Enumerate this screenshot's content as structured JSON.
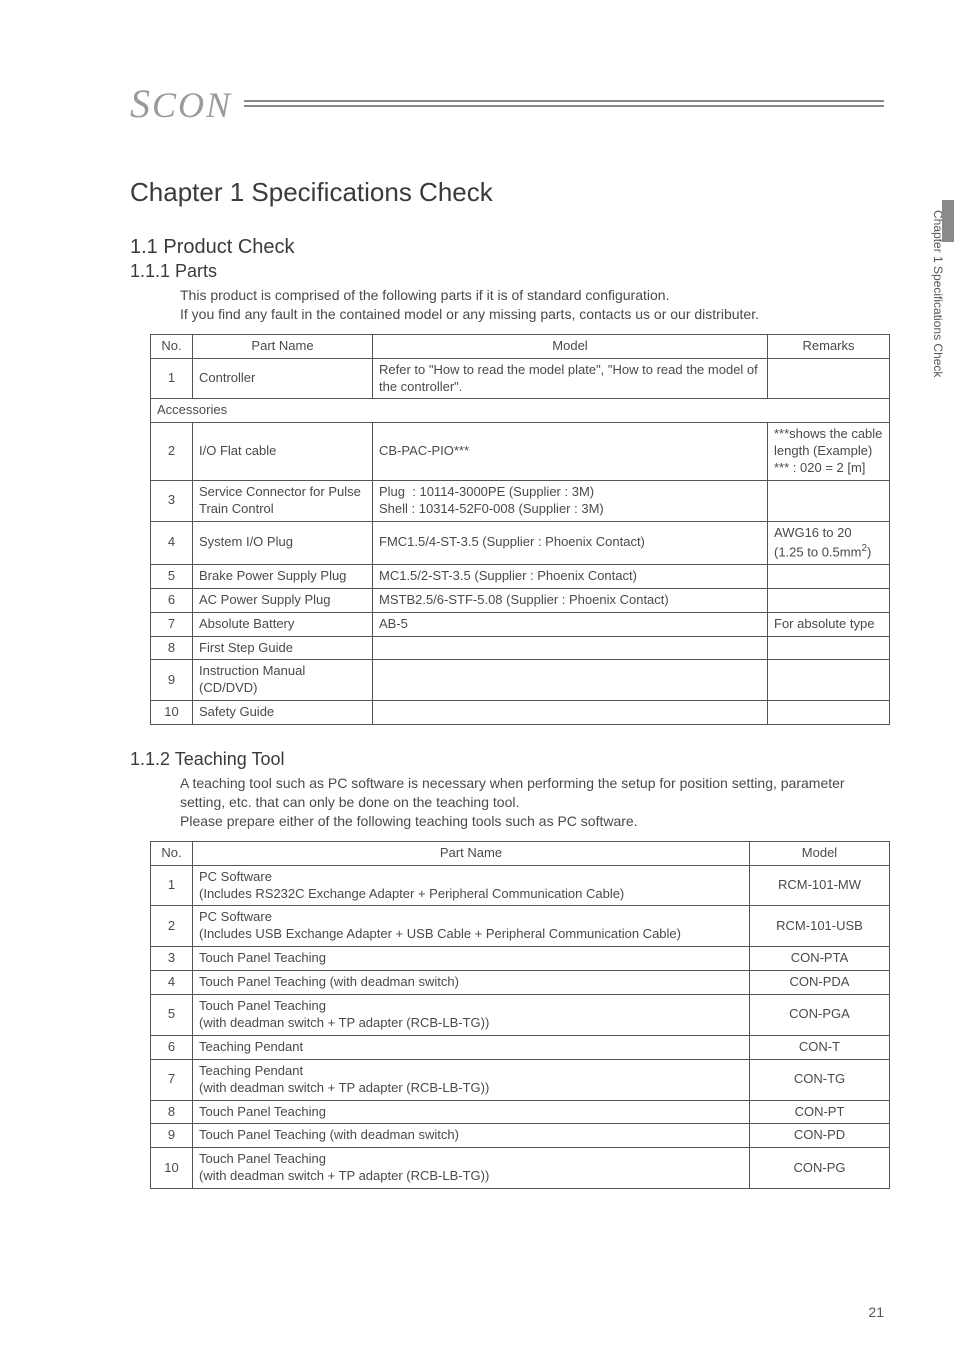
{
  "logo": "SCON",
  "sideTab": "Chapter 1 Specifications Check",
  "pageNumber": "21",
  "chapterTitle": "Chapter 1    Specifications Check",
  "section1": {
    "title": "1.1    Product Check",
    "sub1": {
      "title": "1.1.1    Parts",
      "intro1": "This product is comprised of the following parts if it is of standard configuration.",
      "intro2": "If you find any fault in the contained model or any missing parts, contacts us or our distributer.",
      "table": {
        "headers": {
          "no": "No.",
          "part": "Part Name",
          "model": "Model",
          "remarks": "Remarks"
        },
        "row1": {
          "no": "1",
          "part": "Controller",
          "model": "Refer to \"How to read the model plate\", \"How to read the model of the controller\".",
          "remarks": ""
        },
        "accessories": "Accessories",
        "row2": {
          "no": "2",
          "part": "I/O Flat cable",
          "model": "CB-PAC-PIO***",
          "remarks": "***shows the cable length (Example) *** : 020 = 2 [m]"
        },
        "row3": {
          "no": "3",
          "part": "Service Connector for Pulse Train Control",
          "model": "Plug  : 10114-3000PE (Supplier : 3M)\nShell : 10314-52F0-008 (Supplier : 3M)",
          "remarks": ""
        },
        "row4": {
          "no": "4",
          "part": "System I/O Plug",
          "model": "FMC1.5/4-ST-3.5 (Supplier : Phoenix Contact)",
          "remarks": "AWG16 to 20 (1.25 to 0.5mm²)"
        },
        "row5": {
          "no": "5",
          "part": "Brake Power Supply Plug",
          "model": "MC1.5/2-ST-3.5 (Supplier : Phoenix Contact)",
          "remarks": ""
        },
        "row6": {
          "no": "6",
          "part": "AC Power Supply Plug",
          "model": "MSTB2.5/6-STF-5.08 (Supplier : Phoenix Contact)",
          "remarks": ""
        },
        "row7": {
          "no": "7",
          "part": "Absolute Battery",
          "model": "AB-5",
          "remarks": "For absolute type"
        },
        "row8": {
          "no": "8",
          "part": "First Step Guide",
          "model": "",
          "remarks": ""
        },
        "row9": {
          "no": "9",
          "part": "Instruction Manual (CD/DVD)",
          "model": "",
          "remarks": ""
        },
        "row10": {
          "no": "10",
          "part": "Safety Guide",
          "model": "",
          "remarks": ""
        }
      }
    },
    "sub2": {
      "title": "1.1.2    Teaching Tool",
      "intro1": "A teaching tool such as PC software is necessary when performing the setup for position setting, parameter setting, etc. that can only be done on the teaching tool.",
      "intro2": "Please prepare either of the following teaching tools such as PC software.",
      "table": {
        "headers": {
          "no": "No.",
          "part": "Part Name",
          "model": "Model"
        },
        "rows": [
          {
            "no": "1",
            "part": "PC Software\n(Includes RS232C Exchange Adapter + Peripheral Communication Cable)",
            "model": "RCM-101-MW"
          },
          {
            "no": "2",
            "part": "PC Software\n(Includes USB Exchange Adapter + USB Cable + Peripheral Communication Cable)",
            "model": "RCM-101-USB"
          },
          {
            "no": "3",
            "part": "Touch Panel Teaching",
            "model": "CON-PTA"
          },
          {
            "no": "4",
            "part": "Touch Panel Teaching (with deadman switch)",
            "model": "CON-PDA"
          },
          {
            "no": "5",
            "part": "Touch Panel Teaching\n(with deadman switch + TP adapter (RCB-LB-TG))",
            "model": "CON-PGA"
          },
          {
            "no": "6",
            "part": "Teaching Pendant",
            "model": "CON-T"
          },
          {
            "no": "7",
            "part": "Teaching Pendant\n(with deadman switch + TP adapter (RCB-LB-TG))",
            "model": "CON-TG"
          },
          {
            "no": "8",
            "part": "Touch Panel Teaching",
            "model": "CON-PT"
          },
          {
            "no": "9",
            "part": "Touch Panel Teaching (with deadman switch)",
            "model": "CON-PD"
          },
          {
            "no": "10",
            "part": "Touch Panel Teaching\n(with deadman switch + TP adapter (RCB-LB-TG))",
            "model": "CON-PG"
          }
        ]
      }
    }
  }
}
